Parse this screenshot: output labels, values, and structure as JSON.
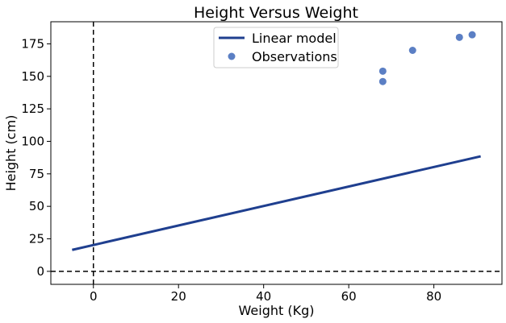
{
  "chart_data": {
    "type": "line",
    "title": "Height Versus Weight",
    "xlabel": "Weight (Kg)",
    "ylabel": "Height (cm)",
    "xlim": [
      -10,
      96
    ],
    "ylim": [
      -10,
      192
    ],
    "x_ticks": [
      0,
      20,
      40,
      60,
      80
    ],
    "y_ticks": [
      0,
      25,
      50,
      75,
      100,
      125,
      150,
      175
    ],
    "grid": false,
    "legend_position": "top-center",
    "reference_lines": [
      {
        "orientation": "vertical",
        "value": 0,
        "style": "dashed",
        "color": "#000000"
      },
      {
        "orientation": "horizontal",
        "value": 0,
        "style": "dashed",
        "color": "#000000"
      }
    ],
    "series": [
      {
        "name": "Linear model",
        "kind": "line",
        "color": "#1f3f8f",
        "x": [
          -5,
          91
        ],
        "y": [
          16.5,
          88.5
        ]
      },
      {
        "name": "Observations",
        "kind": "scatter",
        "color": "#5b7fc4",
        "x": [
          68,
          68,
          75,
          86,
          89
        ],
        "y": [
          154,
          146,
          170,
          180,
          182
        ]
      }
    ]
  }
}
